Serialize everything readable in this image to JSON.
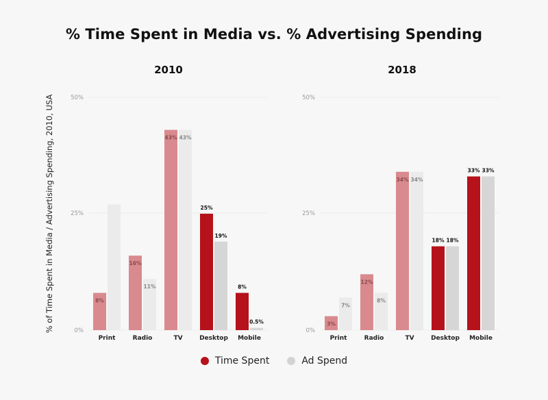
{
  "title": "% Time Spent in Media vs. % Advertising Spending",
  "legend": {
    "time_spent": {
      "label": "Time Spent",
      "color": "#b5121b"
    },
    "ad_spend": {
      "label": "Ad Spend",
      "color": "#d3d3d3"
    }
  },
  "chart_data": {
    "ylabel": "% of Time Spent in Media / Advertising Spending, 2010, USA",
    "yticks": [
      "50%",
      "25%",
      "0%"
    ],
    "panels": [
      {
        "type": "bar",
        "title": "2010",
        "categories": [
          "Print",
          "Radio",
          "TV",
          "Desktop",
          "Mobile"
        ],
        "ylim": [
          0,
          50
        ],
        "series": [
          {
            "name": "Time Spent",
            "values": [
              8,
              16,
              43,
              25,
              8
            ],
            "labels": [
              "8%",
              "16%",
              "43%",
              "25%",
              "8%"
            ]
          },
          {
            "name": "Ad Spend",
            "values": [
              27,
              11,
              43,
              19,
              0.5
            ],
            "labels": [
              "",
              "11%",
              "43%",
              "19%",
              "0.5%"
            ]
          }
        ],
        "highlighted": [
          false,
          false,
          false,
          true,
          true
        ]
      },
      {
        "type": "bar",
        "title": "2018",
        "categories": [
          "Print",
          "Radio",
          "TV",
          "Desktop",
          "Mobile"
        ],
        "ylim": [
          0,
          50
        ],
        "series": [
          {
            "name": "Time Spent",
            "values": [
              3,
              12,
              34,
              18,
              33
            ],
            "labels": [
              "3%",
              "12%",
              "34%",
              "18%",
              "33%"
            ]
          },
          {
            "name": "Ad Spend",
            "values": [
              7,
              8,
              34,
              18,
              33
            ],
            "labels": [
              "7%",
              "8%",
              "34%",
              "18%",
              "33%"
            ]
          }
        ],
        "highlighted": [
          false,
          false,
          false,
          true,
          true
        ]
      }
    ],
    "colors": {
      "time_highlight": "#b5121b",
      "time_muted": "#d98a8e",
      "ad_highlight": "#d6d6d6",
      "ad_muted": "#ebebeb",
      "label_muted": "#8a4a4e"
    }
  }
}
